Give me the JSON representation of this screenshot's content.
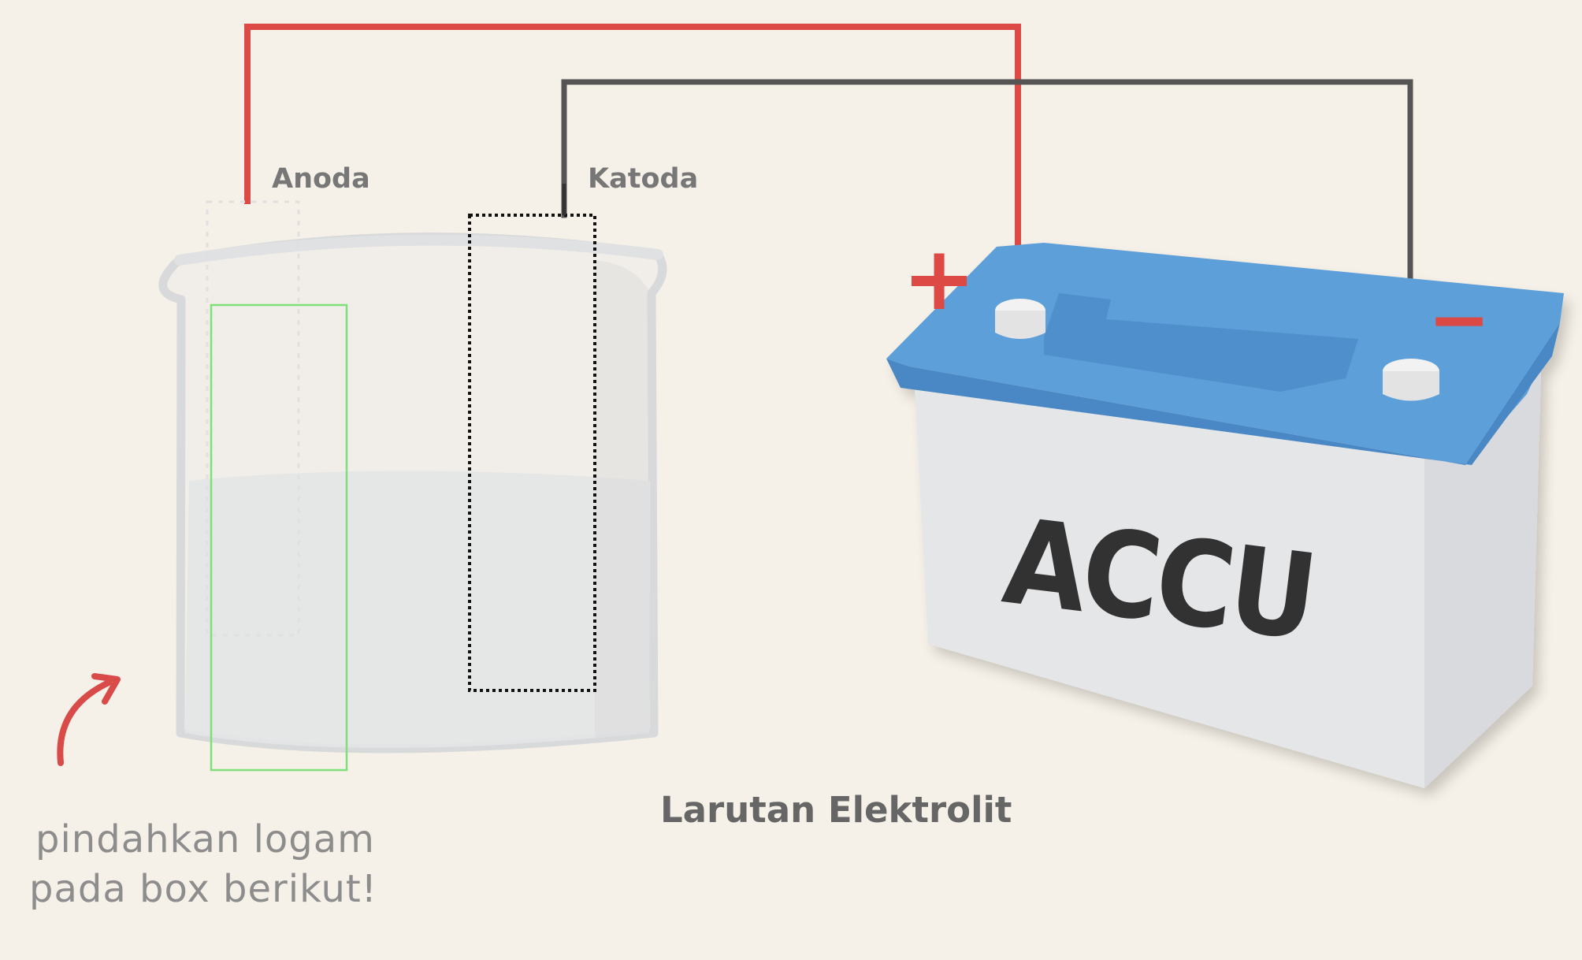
{
  "labels": {
    "anode": "Anoda",
    "cathode": "Katoda",
    "solution": "Larutan Elektrolit",
    "battery": "ACCU"
  },
  "instruction": {
    "line1": "pindahkan logam",
    "line2": "pada box berikut!"
  },
  "terminals": {
    "positive": "+",
    "negative": "−"
  },
  "colors": {
    "background": "#f6f1e8",
    "positive_wire": "#dd4a45",
    "negative_wire": "#555555",
    "battery_top": "#5d9fd8",
    "battery_body": "#e5e6e8",
    "battery_text": "#333333",
    "anode_dropzone": "#7fe07a",
    "cathode_dropzone": "#111111"
  }
}
